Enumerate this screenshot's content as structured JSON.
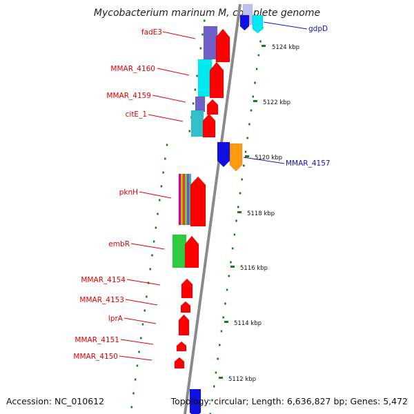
{
  "title": "Mycobacterium marinum M, complete genome",
  "accession": "Accession: NC_010612",
  "topology": "Topology: circular; Length: 6,636,827 bp; Genes: 5,472",
  "colors": {
    "backbone": "#8a8a8a",
    "label_red": "#e00000",
    "label_blue": "#1111cc",
    "dots": "#1e7a1e",
    "red_gene": "#ff0000",
    "blue_gene": "#1010e0",
    "purple_gene": "#7060c8",
    "cyan_gene": "#00e8f0",
    "teal_gene": "#30c0c8",
    "orange_gene": "#ff9a10",
    "green_gene": "#30cc40",
    "lavender_gene": "#c0c0f0"
  },
  "ticks": [
    "5124 kbp",
    "5122 kbp",
    "5120 kbp",
    "5118 kbp",
    "5116 kbp",
    "5114 kbp",
    "5112 kbp"
  ],
  "labels": [
    "fadE3",
    "MMAR_4160",
    "MMAR_4159",
    "citE_1",
    "pknH",
    "embR",
    "MMAR_4154",
    "MMAR_4153",
    "lprA",
    "MMAR_4151",
    "MMAR_4150"
  ],
  "blue_labels": [
    "gdpD",
    "MMAR_4157"
  ],
  "icons": [
    "gene-arrow",
    "tick-dot"
  ]
}
